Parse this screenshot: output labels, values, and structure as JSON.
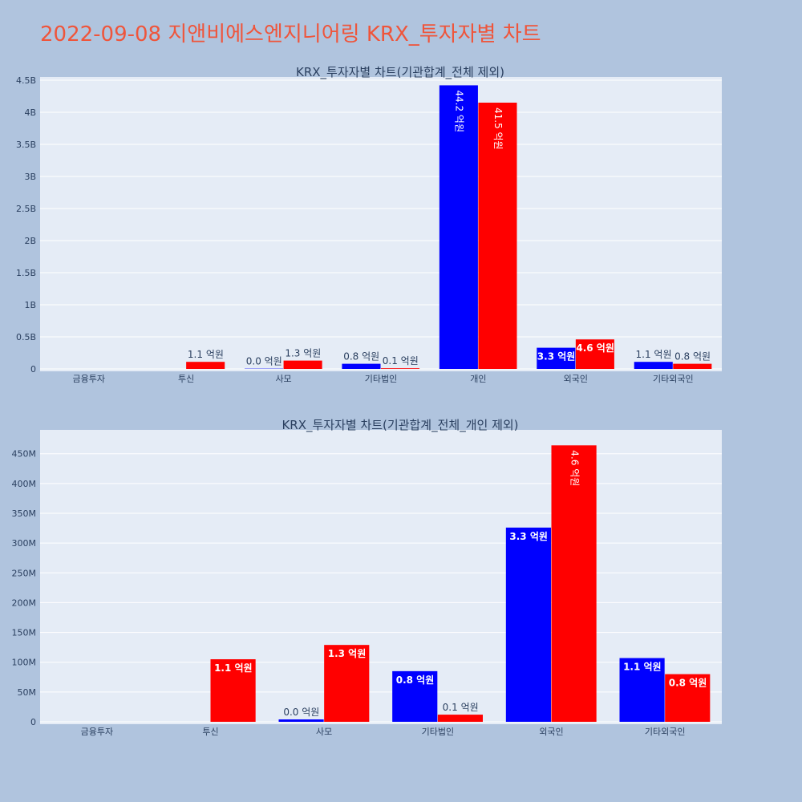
{
  "page": {
    "title": "2022-09-08 지앤비에스엔지니어링 KRX_투자자별 차트"
  },
  "chart_data": [
    {
      "type": "bar",
      "title": "KRX_투자자별 차트(기관합계_전체 제외)",
      "categories": [
        "금융투자",
        "투신",
        "사모",
        "기타법인",
        "개인",
        "외국인",
        "기타외국인"
      ],
      "series": [
        {
          "color": "#0000ff",
          "values": [
            0,
            0,
            4000000,
            80000000,
            4420000000,
            330000000,
            110000000
          ],
          "labels": [
            "",
            "",
            "0.0 억원",
            "0.8 억원",
            "44.2 억원",
            "3.3 억원",
            "1.1 억원"
          ]
        },
        {
          "color": "#ff0000",
          "values": [
            0,
            110000000,
            130000000,
            10000000,
            4150000000,
            460000000,
            80000000
          ],
          "labels": [
            "",
            "1.1 억원",
            "1.3 억원",
            "0.1 억원",
            "41.5 억원",
            "4.6 억원",
            "0.8 억원"
          ]
        }
      ],
      "ylim": [
        0,
        4550000000
      ],
      "yticks": [
        0,
        500000000,
        1000000000,
        1500000000,
        2000000000,
        2500000000,
        3000000000,
        3500000000,
        4000000000,
        4500000000
      ],
      "ytick_labels": [
        "0",
        "0.5B",
        "1B",
        "1.5B",
        "2B",
        "2.5B",
        "3B",
        "3.5B",
        "4B",
        "4.5B"
      ],
      "grid": true
    },
    {
      "type": "bar",
      "title": "KRX_투자자별 차트(기관합계_전체_개인 제외)",
      "categories": [
        "금융투자",
        "투신",
        "사모",
        "기타법인",
        "외국인",
        "기타외국인"
      ],
      "series": [
        {
          "color": "#0000ff",
          "values": [
            0,
            0,
            4000000,
            85000000,
            326000000,
            107000000
          ],
          "labels": [
            "",
            "",
            "0.0 억원",
            "0.8 억원",
            "3.3 억원",
            "1.1 억원"
          ]
        },
        {
          "color": "#ff0000",
          "values": [
            0,
            105000000,
            129000000,
            12000000,
            464000000,
            80000000
          ],
          "labels": [
            "",
            "1.1 억원",
            "1.3 억원",
            "0.1 억원",
            "4.6 억원",
            "0.8 억원"
          ]
        }
      ],
      "ylim": [
        0,
        490000000
      ],
      "yticks": [
        0,
        50000000,
        100000000,
        150000000,
        200000000,
        250000000,
        300000000,
        350000000,
        400000000,
        450000000
      ],
      "ytick_labels": [
        "0",
        "50M",
        "100M",
        "150M",
        "200M",
        "250M",
        "300M",
        "350M",
        "400M",
        "450M"
      ],
      "grid": true
    }
  ]
}
